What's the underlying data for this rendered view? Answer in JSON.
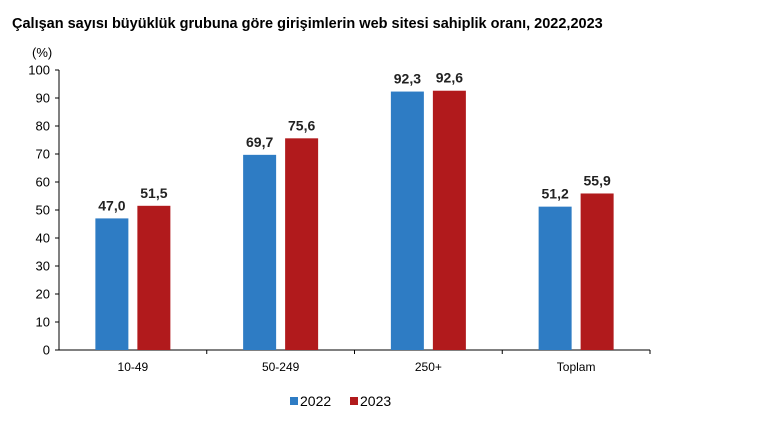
{
  "chart_data": {
    "type": "bar",
    "title": "Çalışan sayısı büyüklük grubuna göre girişimlerin web sitesi sahiplik oranı, 2022,2023",
    "ylabel": "(%)",
    "xlabel": "",
    "ylim": [
      0,
      100
    ],
    "yticks": [
      0,
      10,
      20,
      30,
      40,
      50,
      60,
      70,
      80,
      90,
      100
    ],
    "categories": [
      "10-49",
      "50-249",
      "250+",
      "Toplam"
    ],
    "series": [
      {
        "name": "2022",
        "color": "#2e7cc4",
        "values": [
          47.0,
          69.7,
          92.3,
          51.2
        ],
        "labels": [
          "47,0",
          "69,7",
          "92,3",
          "51,2"
        ]
      },
      {
        "name": "2023",
        "color": "#b11a1c",
        "values": [
          51.5,
          75.6,
          92.6,
          55.9
        ],
        "labels": [
          "51,5",
          "75,6",
          "92,6",
          "55,9"
        ]
      }
    ],
    "grid": false,
    "legend": "bottom"
  }
}
